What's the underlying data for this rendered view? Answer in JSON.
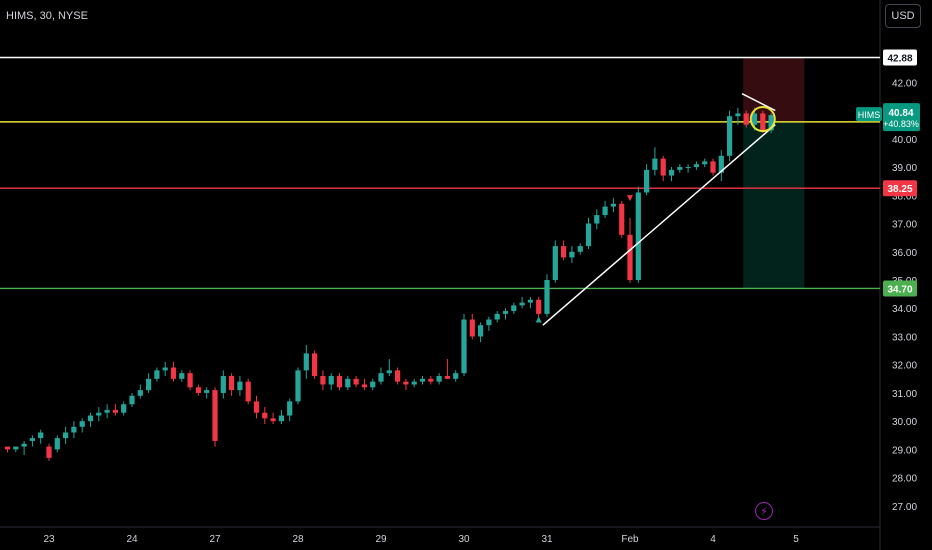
{
  "header": {
    "title": "HIMS, 30, NYSE",
    "currency_label": "USD"
  },
  "icons": {
    "bolt": "lightning-bolt-icon"
  },
  "colors": {
    "up": "#26a69a",
    "down": "#f23645",
    "white_level": "#ffffff",
    "yellow_level": "#e8e337",
    "red_level": "#f23645",
    "green_level": "#4caf50",
    "symbol_badge": "#089981"
  },
  "chart_data": {
    "type": "candlestick",
    "symbol": "HIMS",
    "interval": "30",
    "exchange": "NYSE",
    "ylim": [
      26.5,
      43.5
    ],
    "y_ticks": [
      "42.00",
      "41.00",
      "40.00",
      "39.00",
      "38.00",
      "37.00",
      "36.00",
      "35.00",
      "34.00",
      "33.00",
      "32.00",
      "31.00",
      "30.00",
      "29.00",
      "28.00",
      "27.00"
    ],
    "x_ticks": [
      "23",
      "24",
      "27",
      "28",
      "29",
      "30",
      "31",
      "Feb",
      "4",
      "5"
    ],
    "x_tick_index": [
      5,
      15,
      25,
      35,
      45,
      55,
      65,
      75,
      85,
      95
    ],
    "last_price": {
      "symbol": "HIMS",
      "price": "40.84",
      "change": "+40.83%",
      "value": 40.84
    },
    "horizontal_levels": [
      {
        "price": 42.88,
        "label": "42.88",
        "color": "#ffffff"
      },
      {
        "price": 40.6,
        "label": "",
        "color": "#e8e337"
      },
      {
        "price": 38.25,
        "label": "38.25",
        "color": "#f23645"
      },
      {
        "price": 34.7,
        "label": "34.70",
        "color": "#4caf50"
      }
    ],
    "position": {
      "entry": 40.6,
      "stop": 42.88,
      "target": 34.7,
      "start_index": 89,
      "end_index": 96
    },
    "trendlines": [
      {
        "from": [
          64.5,
          33.4
        ],
        "to": [
          92.5,
          40.5
        ]
      },
      {
        "from": [
          88.5,
          41.6
        ],
        "to": [
          92.5,
          41.0
        ]
      }
    ],
    "circle_marker": {
      "index": 91,
      "price": 40.7
    },
    "triangle_markers": [
      {
        "index": 64,
        "price": 33.6,
        "dir": "up"
      },
      {
        "index": 75,
        "price": 37.9,
        "dir": "down"
      }
    ],
    "candles": [
      [
        29.1,
        29.1,
        28.9,
        29.0
      ],
      [
        29.0,
        29.1,
        28.9,
        29.1
      ],
      [
        29.1,
        29.3,
        28.8,
        29.2
      ],
      [
        29.3,
        29.5,
        29.1,
        29.4
      ],
      [
        29.4,
        29.7,
        29.2,
        29.6
      ],
      [
        29.1,
        29.2,
        28.6,
        28.7
      ],
      [
        29.0,
        29.5,
        28.9,
        29.4
      ],
      [
        29.4,
        29.8,
        29.2,
        29.6
      ],
      [
        29.6,
        30.0,
        29.4,
        29.8
      ],
      [
        29.8,
        30.1,
        29.6,
        30.0
      ],
      [
        30.0,
        30.3,
        29.8,
        30.2
      ],
      [
        30.2,
        30.5,
        30.0,
        30.3
      ],
      [
        30.3,
        30.6,
        30.1,
        30.4
      ],
      [
        30.4,
        30.6,
        30.2,
        30.3
      ],
      [
        30.3,
        30.7,
        30.2,
        30.6
      ],
      [
        30.6,
        31.0,
        30.5,
        30.9
      ],
      [
        30.9,
        31.3,
        30.8,
        31.1
      ],
      [
        31.1,
        31.7,
        31.0,
        31.5
      ],
      [
        31.5,
        31.9,
        31.4,
        31.8
      ],
      [
        31.8,
        32.1,
        31.6,
        31.9
      ],
      [
        31.9,
        32.1,
        31.4,
        31.5
      ],
      [
        31.5,
        31.8,
        31.4,
        31.7
      ],
      [
        31.7,
        31.8,
        31.1,
        31.2
      ],
      [
        31.2,
        31.3,
        30.9,
        31.0
      ],
      [
        31.0,
        31.2,
        30.8,
        31.1
      ],
      [
        31.1,
        31.2,
        29.1,
        29.3
      ],
      [
        31.0,
        31.8,
        30.8,
        31.6
      ],
      [
        31.6,
        31.7,
        30.9,
        31.1
      ],
      [
        31.1,
        31.6,
        30.9,
        31.4
      ],
      [
        31.4,
        31.5,
        30.6,
        30.7
      ],
      [
        30.7,
        30.9,
        30.1,
        30.3
      ],
      [
        30.3,
        30.5,
        29.9,
        30.1
      ],
      [
        30.1,
        30.3,
        29.9,
        30.0
      ],
      [
        30.0,
        30.4,
        29.9,
        30.2
      ],
      [
        30.2,
        30.8,
        30.0,
        30.7
      ],
      [
        30.7,
        31.9,
        30.6,
        31.8
      ],
      [
        31.8,
        32.7,
        31.5,
        32.4
      ],
      [
        32.4,
        32.5,
        31.5,
        31.6
      ],
      [
        31.6,
        31.8,
        31.1,
        31.3
      ],
      [
        31.3,
        31.7,
        31.1,
        31.6
      ],
      [
        31.6,
        31.7,
        31.1,
        31.2
      ],
      [
        31.2,
        31.6,
        31.1,
        31.5
      ],
      [
        31.5,
        31.6,
        31.2,
        31.3
      ],
      [
        31.3,
        31.5,
        31.1,
        31.2
      ],
      [
        31.2,
        31.5,
        31.1,
        31.4
      ],
      [
        31.4,
        31.9,
        31.3,
        31.7
      ],
      [
        31.7,
        32.2,
        31.6,
        31.8
      ],
      [
        31.8,
        31.9,
        31.3,
        31.4
      ],
      [
        31.4,
        31.5,
        31.1,
        31.3
      ],
      [
        31.3,
        31.5,
        31.2,
        31.4
      ],
      [
        31.4,
        31.6,
        31.3,
        31.5
      ],
      [
        31.5,
        31.6,
        31.3,
        31.4
      ],
      [
        31.4,
        31.7,
        31.3,
        31.6
      ],
      [
        31.6,
        32.2,
        31.5,
        31.5
      ],
      [
        31.5,
        31.8,
        31.4,
        31.7
      ],
      [
        31.7,
        33.8,
        31.6,
        33.6
      ],
      [
        33.6,
        33.8,
        32.9,
        33.0
      ],
      [
        33.0,
        33.5,
        32.8,
        33.4
      ],
      [
        33.4,
        33.7,
        33.2,
        33.6
      ],
      [
        33.6,
        33.9,
        33.5,
        33.8
      ],
      [
        33.8,
        34.0,
        33.6,
        33.9
      ],
      [
        33.9,
        34.2,
        33.8,
        34.1
      ],
      [
        34.1,
        34.4,
        34.0,
        34.2
      ],
      [
        34.2,
        34.4,
        34.0,
        34.3
      ],
      [
        34.3,
        34.4,
        33.6,
        33.8
      ],
      [
        33.8,
        35.2,
        33.7,
        35.0
      ],
      [
        35.0,
        36.4,
        34.9,
        36.2
      ],
      [
        36.2,
        36.4,
        35.7,
        35.8
      ],
      [
        35.8,
        36.2,
        35.6,
        36.0
      ],
      [
        36.0,
        36.3,
        35.9,
        36.2
      ],
      [
        36.2,
        37.2,
        36.1,
        37.0
      ],
      [
        37.0,
        37.5,
        36.8,
        37.3
      ],
      [
        37.3,
        37.8,
        37.2,
        37.6
      ],
      [
        37.6,
        37.9,
        37.4,
        37.7
      ],
      [
        37.7,
        37.8,
        36.5,
        36.6
      ],
      [
        36.6,
        37.2,
        34.9,
        35.0
      ],
      [
        35.0,
        38.3,
        34.9,
        38.1
      ],
      [
        38.1,
        39.1,
        38.0,
        38.9
      ],
      [
        38.9,
        39.7,
        38.7,
        39.3
      ],
      [
        39.3,
        39.4,
        38.5,
        38.7
      ],
      [
        38.7,
        39.0,
        38.5,
        38.9
      ],
      [
        38.9,
        39.1,
        38.8,
        39.0
      ],
      [
        39.0,
        39.1,
        38.8,
        39.0
      ],
      [
        39.0,
        39.2,
        38.9,
        39.1
      ],
      [
        39.1,
        39.3,
        39.0,
        39.2
      ],
      [
        39.2,
        39.3,
        38.7,
        38.8
      ],
      [
        38.8,
        39.6,
        38.5,
        39.4
      ],
      [
        39.4,
        41.0,
        39.2,
        40.8
      ],
      [
        40.8,
        41.1,
        40.5,
        40.9
      ],
      [
        40.9,
        41.0,
        40.4,
        40.5
      ],
      [
        40.5,
        41.1,
        40.3,
        40.9
      ],
      [
        40.9,
        41.0,
        40.2,
        40.3
      ],
      [
        40.3,
        40.9,
        40.2,
        40.84
      ]
    ]
  }
}
